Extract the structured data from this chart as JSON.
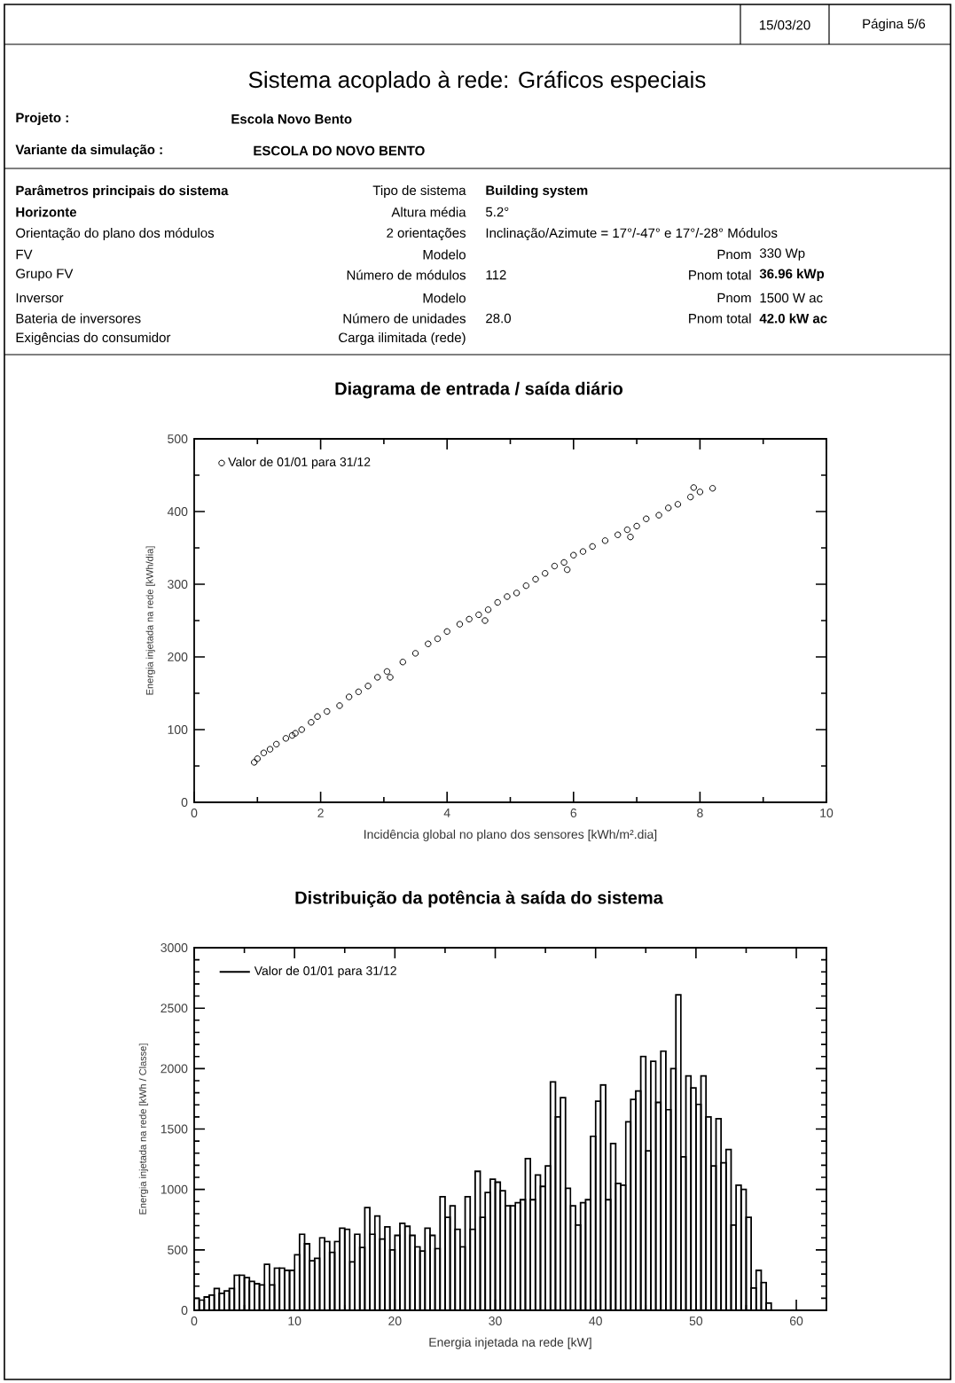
{
  "chart_data": [
    {
      "type": "other",
      "title": "Sistema acoplado à rede: Gráficos especiais",
      "annotations": [
        "15/03/20",
        "Página 5/6",
        "Projeto :",
        "Escola Novo Bento",
        "Variante da simulação :",
        "ESCOLA DO NOVO BENTO",
        "Parâmetros principais do sistema",
        "Tipo de sistema",
        "Building system",
        "Horizonte",
        "Altura média",
        "5.2°",
        "Orientação do plano dos módulos",
        "2 orientações",
        "Inclinação/Azimute = 17°/-47° e 17°/-28° Módulos",
        "FV",
        "Modelo",
        "Pnom",
        "330 Wp",
        "Grupo FV",
        "Número de módulos",
        "112",
        "Pnom total",
        "36.96 kWp",
        "Inversor",
        "Modelo",
        "Pnom",
        "1500 W ac",
        "Bateria de inversores",
        "Número de unidades",
        "28.0",
        "Pnom total",
        "42.0 kW ac",
        "Exigências do consumidor",
        "Carga ilimitada (rede)"
      ]
    },
    {
      "type": "scatter",
      "title": "Diagrama de entrada / saída diário",
      "xlabel": "Incidência global no plano dos sensores [kWh/m².dia]",
      "ylabel": "Energia injetada na rede [kWh/dia]",
      "xlim": [
        0,
        10
      ],
      "xticks": [
        0,
        2,
        4,
        6,
        8,
        10
      ],
      "ylim": [
        0,
        500
      ],
      "yticks": [
        0,
        100,
        200,
        300,
        400,
        500
      ],
      "legend": "top left",
      "marker": "circle",
      "series": [
        {
          "name": "Valor de 01/01 para 31/12",
          "color": "#000000",
          "x": [
            0.95,
            1.0,
            1.1,
            1.2,
            1.3,
            1.45,
            1.55,
            1.6,
            1.7,
            1.85,
            1.95,
            2.1,
            2.3,
            2.45,
            2.6,
            2.75,
            2.9,
            3.05,
            3.1,
            3.3,
            3.5,
            3.7,
            3.85,
            4.0,
            4.2,
            4.35,
            4.5,
            4.6,
            4.65,
            4.8,
            4.95,
            5.1,
            5.25,
            5.4,
            5.55,
            5.7,
            5.85,
            5.9,
            6.0,
            6.15,
            6.3,
            6.5,
            6.7,
            6.85,
            6.9,
            7.0,
            7.15,
            7.35,
            7.5,
            7.65,
            7.85,
            7.9,
            8.0,
            8.2
          ],
          "values": [
            55,
            60,
            68,
            73,
            80,
            88,
            92,
            95,
            100,
            110,
            118,
            125,
            133,
            145,
            152,
            160,
            172,
            180,
            172,
            193,
            205,
            218,
            225,
            235,
            245,
            252,
            258,
            250,
            265,
            275,
            283,
            288,
            298,
            307,
            315,
            325,
            330,
            320,
            340,
            345,
            352,
            360,
            368,
            375,
            365,
            380,
            390,
            395,
            405,
            410,
            420,
            433,
            427,
            432
          ]
        }
      ]
    },
    {
      "type": "histogram",
      "title": "Distribuição da potência à saída do sistema",
      "xlabel": "Energia injetada na rede [kW]",
      "ylabel": "Energia injetada na rede [kWh / Classe]",
      "xlim": [
        0,
        63
      ],
      "xticks": [
        0,
        10,
        20,
        30,
        40,
        50,
        60
      ],
      "ylim": [
        0,
        3000
      ],
      "yticks": [
        0,
        500,
        1000,
        1500,
        2000,
        2500,
        3000
      ],
      "legend": "top left",
      "bins": [
        0,
        0.5,
        1,
        1.5,
        2,
        2.5,
        3,
        3.5,
        4,
        4.5,
        5,
        5.5,
        6,
        6.5,
        7,
        7.5,
        8,
        8.5,
        9,
        9.5,
        10,
        10.5,
        11,
        11.5,
        12,
        12.5,
        13,
        13.5,
        14,
        14.5,
        15,
        15.5,
        16,
        16.5,
        17,
        17.5,
        18,
        18.5,
        19,
        19.5,
        20,
        20.5,
        21,
        21.5,
        22,
        22.5,
        23,
        23.5,
        24,
        24.5,
        25,
        25.5,
        26,
        26.5,
        27,
        27.5,
        28,
        28.5,
        29,
        29.5,
        30,
        30.5,
        31,
        31.5,
        32,
        32.5,
        33,
        33.5,
        34,
        34.5,
        35,
        35.5,
        36,
        36.5,
        37,
        37.5,
        38,
        38.5,
        39,
        39.5,
        40,
        40.5,
        41,
        41.5,
        42,
        42.5,
        43,
        43.5,
        44,
        44.5,
        45,
        45.5,
        46,
        46.5,
        47,
        47.5,
        48,
        48.5,
        49,
        49.5,
        50,
        50.5,
        51,
        51.5,
        52,
        52.5,
        53,
        53.5,
        54,
        54.5,
        55,
        55.5,
        56,
        56.5,
        57,
        57.5
      ],
      "series": [
        {
          "name": "Valor de 01/01 para 31/12",
          "color": "#000000",
          "values": [
            100,
            85,
            110,
            125,
            180,
            140,
            160,
            180,
            290,
            290,
            270,
            240,
            220,
            210,
            380,
            210,
            350,
            350,
            330,
            330,
            460,
            630,
            550,
            410,
            430,
            600,
            570,
            480,
            570,
            680,
            670,
            400,
            630,
            520,
            850,
            630,
            780,
            590,
            690,
            500,
            620,
            720,
            695,
            620,
            525,
            490,
            680,
            620,
            510,
            940,
            770,
            865,
            670,
            525,
            940,
            670,
            1150,
            770,
            975,
            1085,
            1060,
            990,
            865,
            865,
            890,
            915,
            1255,
            915,
            1120,
            1025,
            1195,
            1890,
            1600,
            1760,
            1010,
            865,
            705,
            890,
            915,
            1440,
            1730,
            1865,
            915,
            1380,
            1050,
            1035,
            1560,
            1745,
            1815,
            2100,
            1320,
            2060,
            1720,
            2145,
            1660,
            2000,
            2610,
            1270,
            1940,
            1840,
            1705,
            1940,
            1600,
            1195,
            1585,
            1220,
            1330,
            705,
            1035,
            1000,
            770,
            185,
            330,
            230,
            60
          ]
        }
      ]
    }
  ]
}
